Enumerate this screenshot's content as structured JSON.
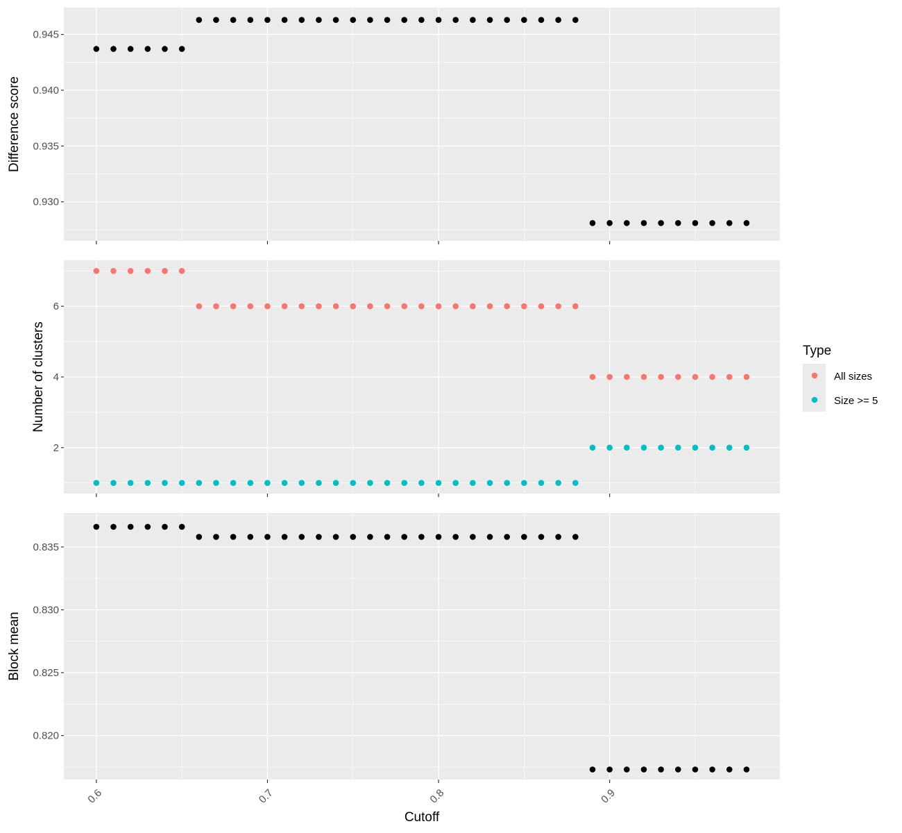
{
  "chart_data": [
    {
      "type": "scatter",
      "ylabel": "Difference score",
      "ylim": [
        0.9265,
        0.9474
      ],
      "yticks": [
        0.93,
        0.935,
        0.94,
        0.945
      ],
      "ytick_labels": [
        "0.930",
        "0.935",
        "0.940",
        "0.945"
      ],
      "grid": true,
      "series": [
        {
          "color": "#000000",
          "x": [
            0.6,
            0.61,
            0.62,
            0.63,
            0.64,
            0.65,
            0.66,
            0.67,
            0.68,
            0.69,
            0.7,
            0.71,
            0.72,
            0.73,
            0.74,
            0.75,
            0.76,
            0.77,
            0.78,
            0.79,
            0.8,
            0.81,
            0.82,
            0.83,
            0.84,
            0.85,
            0.86,
            0.87,
            0.88,
            0.89,
            0.9,
            0.91,
            0.92,
            0.93,
            0.94,
            0.95,
            0.96,
            0.97,
            0.98
          ],
          "y": [
            0.9437,
            0.9437,
            0.9437,
            0.9437,
            0.9437,
            0.9437,
            0.9463,
            0.9463,
            0.9463,
            0.9463,
            0.9463,
            0.9463,
            0.9463,
            0.9463,
            0.9463,
            0.9463,
            0.9463,
            0.9463,
            0.9463,
            0.9463,
            0.9463,
            0.9463,
            0.9463,
            0.9463,
            0.9463,
            0.9463,
            0.9463,
            0.9463,
            0.9463,
            0.9281,
            0.9281,
            0.9281,
            0.9281,
            0.9281,
            0.9281,
            0.9281,
            0.9281,
            0.9281,
            0.9281
          ]
        }
      ]
    },
    {
      "type": "scatter",
      "ylabel": "Number of clusters",
      "ylim": [
        0.7,
        7.3
      ],
      "yticks": [
        2,
        4,
        6
      ],
      "ytick_labels": [
        "2",
        "4",
        "6"
      ],
      "grid": true,
      "legend_position": "right",
      "series": [
        {
          "name": "All sizes",
          "color": "#F8766D",
          "x": [
            0.6,
            0.61,
            0.62,
            0.63,
            0.64,
            0.65,
            0.66,
            0.67,
            0.68,
            0.69,
            0.7,
            0.71,
            0.72,
            0.73,
            0.74,
            0.75,
            0.76,
            0.77,
            0.78,
            0.79,
            0.8,
            0.81,
            0.82,
            0.83,
            0.84,
            0.85,
            0.86,
            0.87,
            0.88,
            0.89,
            0.9,
            0.91,
            0.92,
            0.93,
            0.94,
            0.95,
            0.96,
            0.97,
            0.98
          ],
          "y": [
            7,
            7,
            7,
            7,
            7,
            7,
            6,
            6,
            6,
            6,
            6,
            6,
            6,
            6,
            6,
            6,
            6,
            6,
            6,
            6,
            6,
            6,
            6,
            6,
            6,
            6,
            6,
            6,
            6,
            4,
            4,
            4,
            4,
            4,
            4,
            4,
            4,
            4,
            4
          ]
        },
        {
          "name": "Size >= 5",
          "color": "#00BFC4",
          "x": [
            0.6,
            0.61,
            0.62,
            0.63,
            0.64,
            0.65,
            0.66,
            0.67,
            0.68,
            0.69,
            0.7,
            0.71,
            0.72,
            0.73,
            0.74,
            0.75,
            0.76,
            0.77,
            0.78,
            0.79,
            0.8,
            0.81,
            0.82,
            0.83,
            0.84,
            0.85,
            0.86,
            0.87,
            0.88,
            0.89,
            0.9,
            0.91,
            0.92,
            0.93,
            0.94,
            0.95,
            0.96,
            0.97,
            0.98
          ],
          "y": [
            1,
            1,
            1,
            1,
            1,
            1,
            1,
            1,
            1,
            1,
            1,
            1,
            1,
            1,
            1,
            1,
            1,
            1,
            1,
            1,
            1,
            1,
            1,
            1,
            1,
            1,
            1,
            1,
            1,
            2,
            2,
            2,
            2,
            2,
            2,
            2,
            2,
            2,
            2
          ]
        }
      ]
    },
    {
      "type": "scatter",
      "xlabel": "Cutoff",
      "ylabel": "Block mean",
      "ylim": [
        0.8165,
        0.8377
      ],
      "yticks": [
        0.82,
        0.825,
        0.83,
        0.835
      ],
      "ytick_labels": [
        "0.820",
        "0.825",
        "0.830",
        "0.835"
      ],
      "grid": true,
      "series": [
        {
          "color": "#000000",
          "x": [
            0.6,
            0.61,
            0.62,
            0.63,
            0.64,
            0.65,
            0.66,
            0.67,
            0.68,
            0.69,
            0.7,
            0.71,
            0.72,
            0.73,
            0.74,
            0.75,
            0.76,
            0.77,
            0.78,
            0.79,
            0.8,
            0.81,
            0.82,
            0.83,
            0.84,
            0.85,
            0.86,
            0.87,
            0.88,
            0.89,
            0.9,
            0.91,
            0.92,
            0.93,
            0.94,
            0.95,
            0.96,
            0.97,
            0.98
          ],
          "y": [
            0.8366,
            0.8366,
            0.8366,
            0.8366,
            0.8366,
            0.8366,
            0.8358,
            0.8358,
            0.8358,
            0.8358,
            0.8358,
            0.8358,
            0.8358,
            0.8358,
            0.8358,
            0.8358,
            0.8358,
            0.8358,
            0.8358,
            0.8358,
            0.8358,
            0.8358,
            0.8358,
            0.8358,
            0.8358,
            0.8358,
            0.8358,
            0.8358,
            0.8358,
            0.8173,
            0.8173,
            0.8173,
            0.8173,
            0.8173,
            0.8173,
            0.8173,
            0.8173,
            0.8173,
            0.8173
          ]
        }
      ]
    }
  ],
  "shared_x": {
    "xlabel": "Cutoff",
    "xlim": [
      0.581,
      0.9995
    ],
    "xticks": [
      0.6,
      0.7,
      0.8,
      0.9
    ],
    "xtick_labels": [
      "0.6",
      "0.7",
      "0.8",
      "0.9"
    ]
  },
  "legend": {
    "title": "Type",
    "items": [
      {
        "label": "All sizes",
        "color": "#F8766D"
      },
      {
        "label": "Size >= 5",
        "color": "#00BFC4"
      }
    ]
  },
  "colors": {
    "panel_background": "#EBEBEB",
    "grid_major": "#FFFFFF",
    "axis_tick": "#333333"
  }
}
